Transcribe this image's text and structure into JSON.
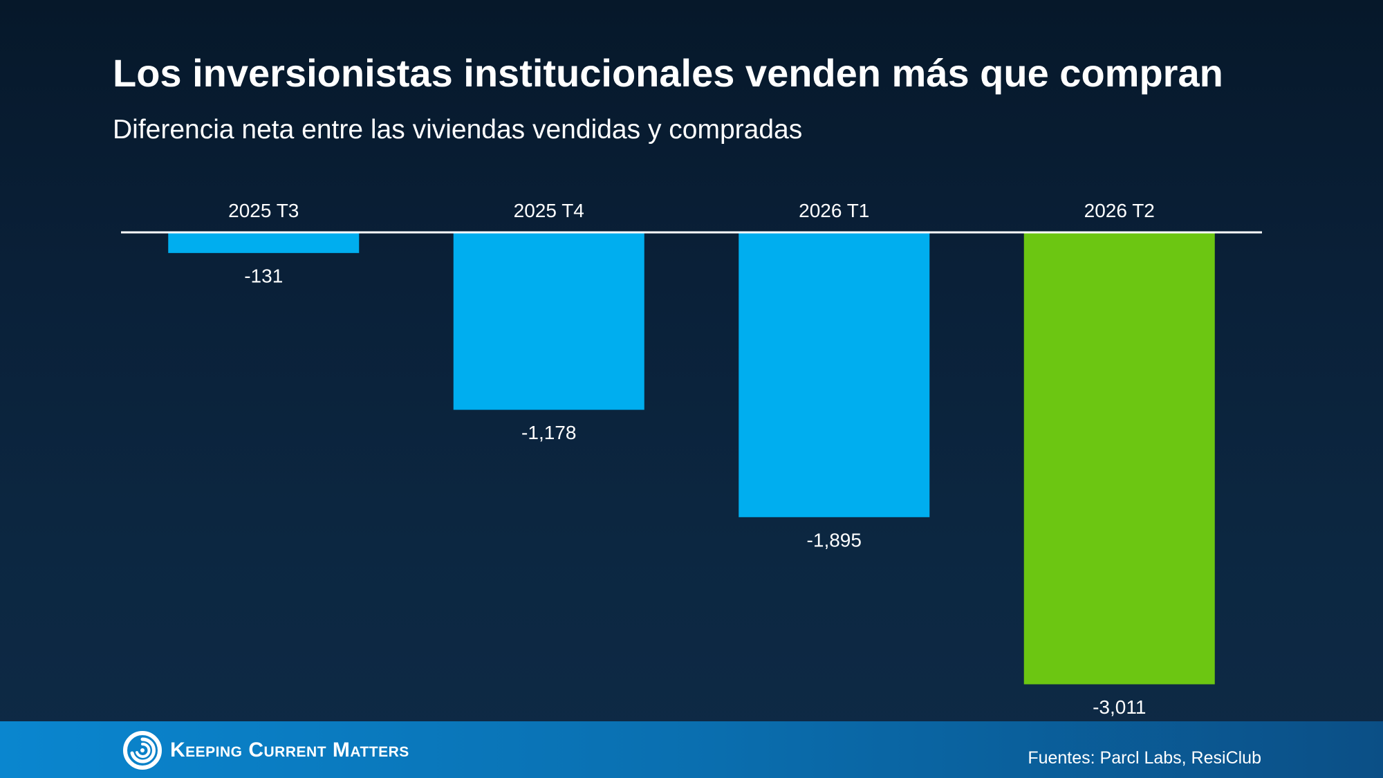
{
  "header": {
    "title": "Los inversionistas institucionales venden más que compran",
    "subtitle": "Diferencia neta entre las viviendas vendidas y compradas"
  },
  "chart_data": {
    "type": "bar",
    "title": "Los inversionistas institucionales venden más que compran",
    "subtitle": "Diferencia neta entre las viviendas vendidas y compradas",
    "categories": [
      "2025 T3",
      "2025 T4",
      "2026 T1",
      "2026 T2"
    ],
    "values": [
      -131,
      -1178,
      -1895,
      -3011
    ],
    "value_labels": [
      "-131",
      "-1,178",
      "-1,895",
      "-3,011"
    ],
    "category_axis_position": "top",
    "ylim": [
      -3011,
      0
    ],
    "grid": false,
    "legend": "none",
    "colors": {
      "bar_default": "#00aeef",
      "bar_highlight": "#6cc612",
      "axis_line": "#ffffff",
      "text": "#ffffff"
    },
    "highlight_index": 3
  },
  "footer": {
    "logo_text": "Keeping Current Matters",
    "logo_icon": "swirl-logo-icon",
    "source": "Fuentes: Parcl Labs, ResiClub"
  }
}
